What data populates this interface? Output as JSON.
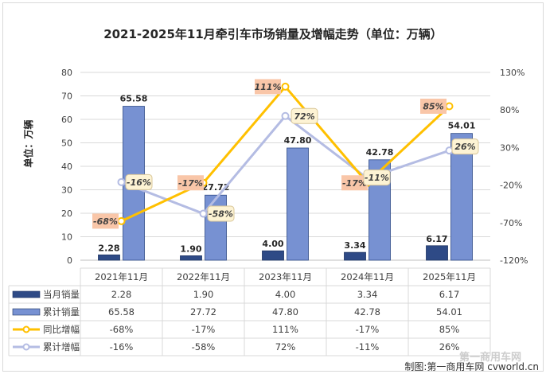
{
  "chart_data": {
    "type": "bar",
    "title": "2021-2025年11月牵引车市场销量及增幅走势（单位：万辆）",
    "ylabel": "单位：万辆",
    "categories": [
      "2021年11月",
      "2022年11月",
      "2023年11月",
      "2024年11月",
      "2025年11月"
    ],
    "ylim": [
      0,
      80
    ],
    "y_ticks": [
      "0",
      "10",
      "20",
      "30",
      "40",
      "50",
      "60",
      "70",
      "80"
    ],
    "y2lim": [
      -120,
      130
    ],
    "y2_ticks": [
      "-120%",
      "-70%",
      "-20%",
      "30%",
      "80%",
      "130%"
    ],
    "series": [
      {
        "name": "当月销量",
        "kind": "bar",
        "color": "#2e4a86",
        "values": [
          2.28,
          1.9,
          4.0,
          3.34,
          6.17
        ],
        "labels": [
          "2.28",
          "1.90",
          "4.00",
          "3.34",
          "6.17"
        ]
      },
      {
        "name": "累计销量",
        "kind": "bar",
        "color": "#7791d2",
        "values": [
          65.58,
          27.72,
          47.8,
          42.78,
          54.01
        ],
        "labels": [
          "65.58",
          "27.72",
          "47.80",
          "42.78",
          "54.01"
        ]
      },
      {
        "name": "同比增幅",
        "kind": "line",
        "axis": "right",
        "color": "#ffc000",
        "values": [
          -68,
          -17,
          111,
          -17,
          85
        ],
        "labels": [
          "-68%",
          "-17%",
          "111%",
          "-17%",
          "85%"
        ]
      },
      {
        "name": "累计增幅",
        "kind": "line",
        "axis": "right",
        "color": "#b4bce3",
        "values": [
          -16,
          -58,
          72,
          -11,
          26
        ],
        "labels": [
          "-16%",
          "-58%",
          "72%",
          "-11%",
          "26%"
        ]
      }
    ],
    "grid": true,
    "legend": "data-table"
  },
  "colors": {
    "tag_orange_fill": "#f9c6a8",
    "tag_yellow_fill": "#fdf3d4",
    "tag_yellow_stroke": "#d9c79a"
  },
  "watermark": {
    "top": "第一商用车网",
    "bottom": "制图:第一商用车网 cvworld.cn"
  }
}
